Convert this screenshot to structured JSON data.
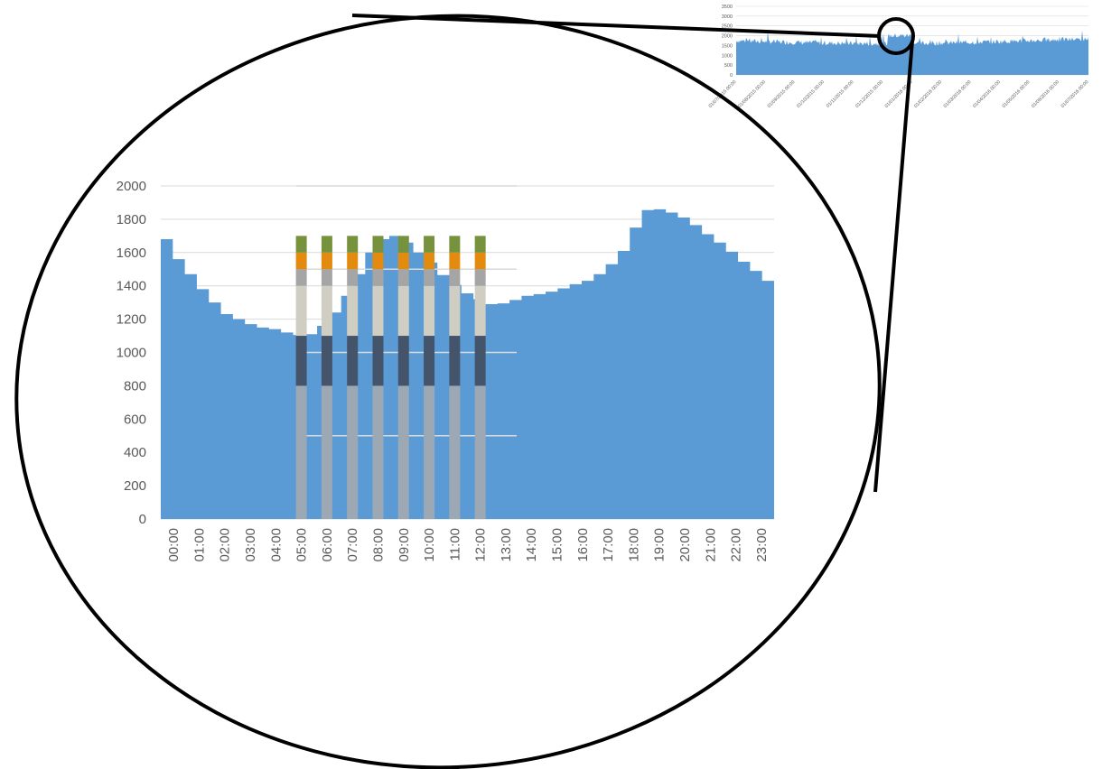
{
  "chart_data": [
    {
      "type": "area",
      "role": "inset-overview",
      "ylim": [
        0,
        3500
      ],
      "yticks": [
        0,
        500,
        1000,
        1500,
        2000,
        2500,
        3000,
        3500
      ],
      "x_ticks": [
        "01/07/2015 00:00",
        "01/08/2015 00:00",
        "01/09/2015 00:00",
        "01/10/2015 00:00",
        "01/11/2015 00:00",
        "01/12/2015 00:00",
        "01/01/2016 00:00",
        "01/02/2016 00:00",
        "01/03/2016 00:00",
        "01/04/2016 00:00",
        "01/05/2016 00:00",
        "01/06/2016 00:00",
        "01/07/2016 00:00"
      ],
      "color": "#5b9bd5"
    },
    {
      "type": "bar",
      "role": "zoomed-day-profile",
      "ylim": [
        0,
        2000
      ],
      "yticks": [
        0,
        200,
        400,
        600,
        800,
        1000,
        1200,
        1400,
        1600,
        1800,
        2000
      ],
      "x_labels": [
        "00:00",
        "01:00",
        "02:00",
        "03:00",
        "04:00",
        "05:00",
        "06:00",
        "07:00",
        "08:00",
        "09:00",
        "10:00",
        "11:00",
        "12:00",
        "13:00",
        "14:00",
        "15:00",
        "16:00",
        "17:00",
        "18:00",
        "19:00",
        "20:00",
        "21:00",
        "22:00",
        "23:00"
      ],
      "series": [
        {
          "values": [
            1680,
            1560,
            1470,
            1380,
            1300,
            1230,
            1200,
            1170,
            1150,
            1140,
            1120,
            1105,
            1110,
            1160,
            1240,
            1340,
            1470,
            1600,
            1680,
            1700,
            1660,
            1600,
            1540,
            1465,
            1405,
            1355,
            1320,
            1290,
            1295,
            1315,
            1340,
            1350,
            1365,
            1385,
            1410,
            1430,
            1470,
            1530,
            1610,
            1750,
            1855,
            1860,
            1840,
            1810,
            1765,
            1710,
            1660,
            1605,
            1545,
            1490,
            1430
          ],
          "color": "#5b9bd5"
        }
      ],
      "overlay_bars": {
        "at": [
          "05:30",
          "06:30",
          "07:30",
          "08:30",
          "09:30",
          "10:30",
          "11:30",
          "12:30"
        ],
        "segments": [
          {
            "from": 0,
            "to": 800,
            "color": "#9da8b5"
          },
          {
            "from": 800,
            "to": 1100,
            "color": "#44546a"
          },
          {
            "from": 1100,
            "to": 1400,
            "color": "#d0cec3"
          },
          {
            "from": 1400,
            "to": 1500,
            "color": "#a5a5a5"
          },
          {
            "from": 1500,
            "to": 1600,
            "color": "#e38b0f"
          },
          {
            "from": 1600,
            "to": 1700,
            "color": "#76923c"
          }
        ]
      },
      "reference_lines": [
        500,
        1000,
        1500,
        2000
      ],
      "grid": true,
      "legend": "none"
    }
  ]
}
